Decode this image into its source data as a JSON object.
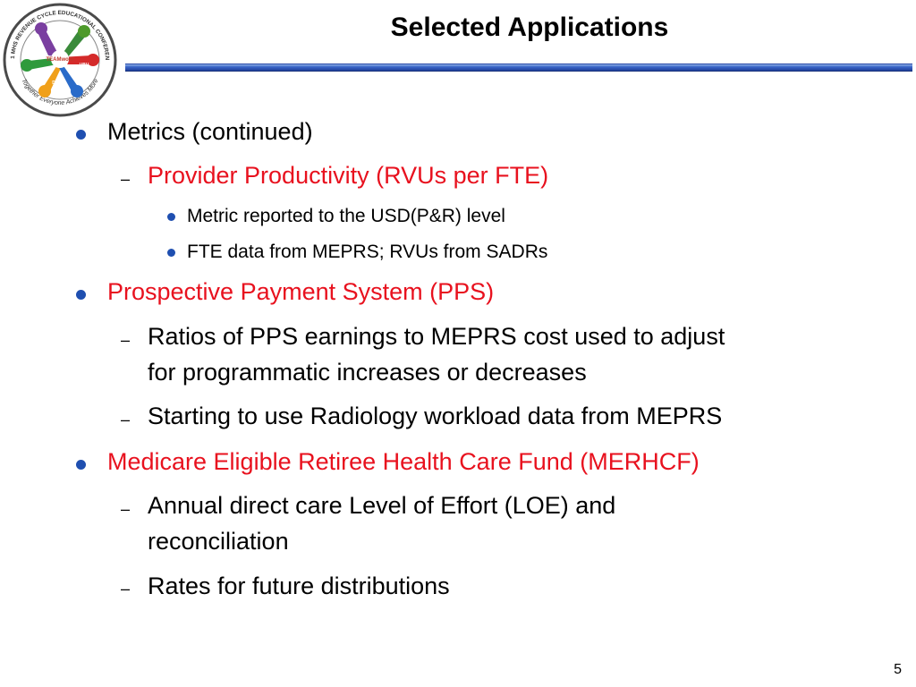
{
  "slide": {
    "title": "Selected Applications",
    "page_number": "5"
  },
  "logo": {
    "ring_text_top": "2011 MHS REVENUE CYCLE EDUCATIONAL CONFERENCE",
    "ring_text_bottom": "Together Everyone Achieves More",
    "center_text": "TEAMwork",
    "hand_labels": [
      "MEPRS",
      "UBO",
      "UBU",
      "DQ"
    ]
  },
  "colors": {
    "bullet": "#1f4fb0",
    "highlight": "#e8111e",
    "title_bar": "#2a4aa8"
  },
  "bullets": [
    {
      "level": 1,
      "text": "Metrics (continued)"
    },
    {
      "level": 2,
      "text": "Provider Productivity (RVUs per FTE)",
      "highlight": true
    },
    {
      "level": 3,
      "text": "Metric reported to the USD(P&R) level"
    },
    {
      "level": 3,
      "text": "FTE data from MEPRS; RVUs from SADRs"
    },
    {
      "level": 1,
      "text": "Prospective Payment System (PPS)",
      "highlight": true
    },
    {
      "level": 2,
      "text": "Ratios of PPS earnings to MEPRS cost used to adjust",
      "continuation": "for programmatic increases or decreases"
    },
    {
      "level": 2,
      "text": "Starting to use Radiology workload data from MEPRS"
    },
    {
      "level": 1,
      "text": "Medicare Eligible Retiree Health Care Fund (MERHCF)",
      "highlight": true
    },
    {
      "level": 2,
      "text": "Annual direct care Level of Effort (LOE) and",
      "continuation": "reconciliation"
    },
    {
      "level": 2,
      "text": "Rates for future distributions"
    }
  ]
}
